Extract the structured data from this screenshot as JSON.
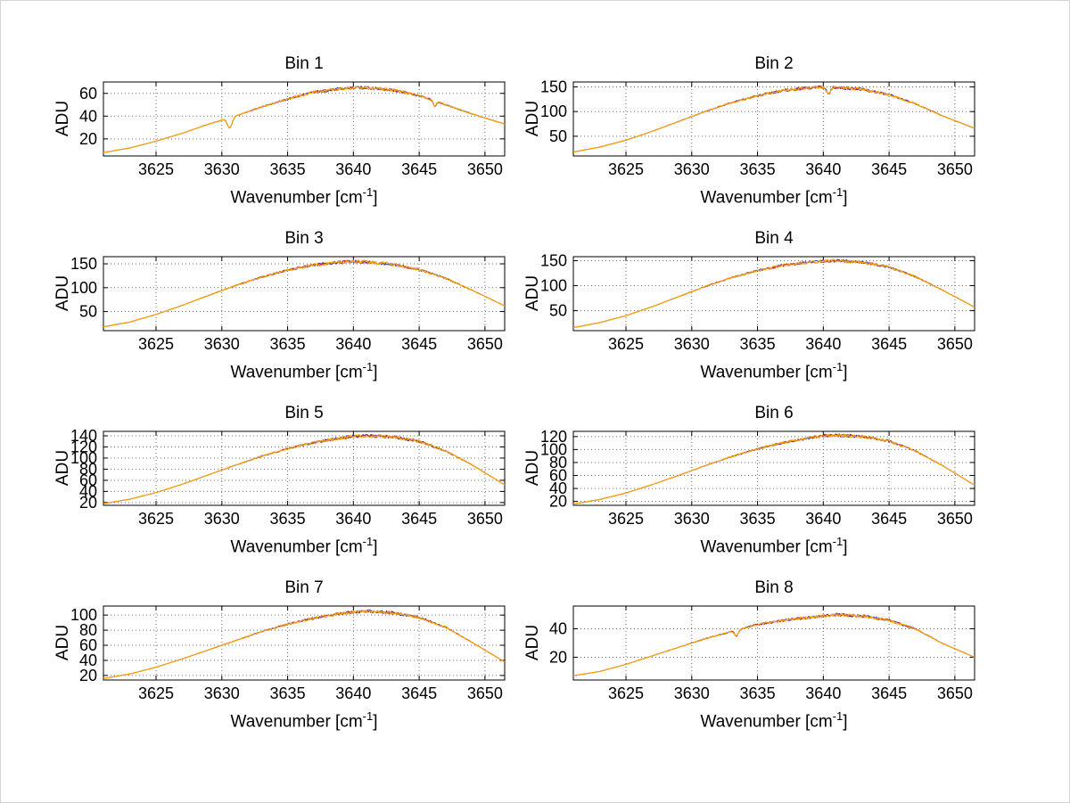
{
  "figure": {
    "background": "#ffffff",
    "axis_color": "#000000",
    "grid_color": "#6e6e6e",
    "text_color": "#000000",
    "series_colors": [
      "#2040c0",
      "#c03030",
      "#ffa500"
    ]
  },
  "labels": {
    "x_pre": "Wavenumber [cm",
    "x_sup": "-1",
    "x_post": "]"
  },
  "chart_data": [
    {
      "type": "line",
      "title": "Bin 1",
      "ylabel": "ADU",
      "xlim": [
        3621,
        3651.5
      ],
      "ylim": [
        5,
        70
      ],
      "xticks": [
        3625,
        3630,
        3635,
        3640,
        3645,
        3650
      ],
      "yticks": [
        20,
        40,
        60
      ],
      "curve_x": [
        3621,
        3623,
        3625,
        3627,
        3629,
        3631,
        3633,
        3635,
        3637,
        3639,
        3640,
        3641,
        3643,
        3645,
        3647,
        3649,
        3651.5
      ],
      "curve_y": [
        8,
        12,
        18,
        25,
        33,
        40,
        48,
        55,
        61,
        64,
        65,
        65,
        63,
        58,
        50,
        42,
        33
      ],
      "dips": [
        {
          "x": 3630.6,
          "depth": 9,
          "width": 0.25
        },
        {
          "x": 3646.2,
          "depth": 5,
          "width": 0.15
        }
      ]
    },
    {
      "type": "line",
      "title": "Bin 2",
      "ylabel": "ADU",
      "xlim": [
        3621,
        3651.5
      ],
      "ylim": [
        10,
        160
      ],
      "xticks": [
        3625,
        3630,
        3635,
        3640,
        3645,
        3650
      ],
      "yticks": [
        50,
        100,
        150
      ],
      "curve_x": [
        3621,
        3623,
        3625,
        3627,
        3629,
        3631,
        3633,
        3635,
        3637,
        3639,
        3640,
        3641,
        3643,
        3645,
        3647,
        3649,
        3651.5
      ],
      "curve_y": [
        18,
        28,
        42,
        60,
        80,
        100,
        118,
        132,
        143,
        148,
        150,
        149,
        145,
        134,
        116,
        92,
        66
      ],
      "dips": [
        {
          "x": 3640.4,
          "depth": 14,
          "width": 0.2
        }
      ]
    },
    {
      "type": "line",
      "title": "Bin 3",
      "ylabel": "ADU",
      "xlim": [
        3621,
        3651.5
      ],
      "ylim": [
        10,
        165
      ],
      "xticks": [
        3625,
        3630,
        3635,
        3640,
        3645,
        3650
      ],
      "yticks": [
        50,
        100,
        150
      ],
      "curve_x": [
        3621,
        3623,
        3625,
        3627,
        3629,
        3631,
        3633,
        3635,
        3637,
        3639,
        3640,
        3641,
        3643,
        3645,
        3647,
        3649,
        3651.5
      ],
      "curve_y": [
        18,
        28,
        44,
        63,
        84,
        104,
        122,
        137,
        148,
        153,
        155,
        154,
        149,
        138,
        120,
        95,
        62
      ],
      "dips": []
    },
    {
      "type": "line",
      "title": "Bin 4",
      "ylabel": "ADU",
      "xlim": [
        3621,
        3651.5
      ],
      "ylim": [
        10,
        158
      ],
      "xticks": [
        3625,
        3630,
        3635,
        3640,
        3645,
        3650
      ],
      "yticks": [
        50,
        100,
        150
      ],
      "curve_x": [
        3621,
        3623,
        3625,
        3627,
        3629,
        3631,
        3633,
        3635,
        3637,
        3639,
        3640,
        3641,
        3643,
        3645,
        3647,
        3649,
        3651.5
      ],
      "curve_y": [
        16,
        26,
        40,
        58,
        78,
        98,
        116,
        130,
        141,
        147,
        149,
        150,
        147,
        137,
        118,
        92,
        57
      ],
      "dips": []
    },
    {
      "type": "line",
      "title": "Bin 5",
      "ylabel": "ADU",
      "xlim": [
        3621,
        3651.5
      ],
      "ylim": [
        15,
        148
      ],
      "xticks": [
        3625,
        3630,
        3635,
        3640,
        3645,
        3650
      ],
      "yticks": [
        20,
        40,
        60,
        80,
        100,
        120,
        140
      ],
      "curve_x": [
        3621,
        3623,
        3625,
        3627,
        3629,
        3631,
        3633,
        3635,
        3637,
        3639,
        3640,
        3641,
        3643,
        3645,
        3647,
        3649,
        3651.5
      ],
      "curve_y": [
        18,
        26,
        38,
        53,
        70,
        87,
        103,
        117,
        128,
        136,
        139,
        140,
        138,
        130,
        113,
        88,
        52
      ],
      "dips": []
    },
    {
      "type": "line",
      "title": "Bin 6",
      "ylabel": "ADU",
      "xlim": [
        3621,
        3651.5
      ],
      "ylim": [
        14,
        128
      ],
      "xticks": [
        3625,
        3630,
        3635,
        3640,
        3645,
        3650
      ],
      "yticks": [
        20,
        40,
        60,
        80,
        100,
        120
      ],
      "curve_x": [
        3621,
        3623,
        3625,
        3627,
        3629,
        3631,
        3633,
        3635,
        3637,
        3639,
        3640,
        3641,
        3643,
        3645,
        3647,
        3649,
        3651.5
      ],
      "curve_y": [
        16,
        23,
        33,
        46,
        60,
        75,
        89,
        101,
        111,
        118,
        121,
        122,
        120,
        113,
        98,
        76,
        45
      ],
      "dips": []
    },
    {
      "type": "line",
      "title": "Bin 7",
      "ylabel": "ADU",
      "xlim": [
        3621,
        3651.5
      ],
      "ylim": [
        14,
        112
      ],
      "xticks": [
        3625,
        3630,
        3635,
        3640,
        3645,
        3650
      ],
      "yticks": [
        20,
        40,
        60,
        80,
        100
      ],
      "curve_x": [
        3621,
        3623,
        3625,
        3627,
        3629,
        3631,
        3633,
        3635,
        3637,
        3639,
        3640,
        3641,
        3643,
        3645,
        3647,
        3649,
        3651.5
      ],
      "curve_y": [
        16,
        22,
        31,
        42,
        54,
        66,
        78,
        88,
        96,
        102,
        104,
        105,
        103,
        97,
        84,
        64,
        38
      ],
      "dips": []
    },
    {
      "type": "line",
      "title": "Bin 8",
      "ylabel": "ADU",
      "xlim": [
        3621,
        3651.5
      ],
      "ylim": [
        4,
        56
      ],
      "xticks": [
        3625,
        3630,
        3635,
        3640,
        3645,
        3650
      ],
      "yticks": [
        20,
        40
      ],
      "curve_x": [
        3621,
        3623,
        3625,
        3627,
        3629,
        3631,
        3633,
        3635,
        3637,
        3639,
        3640,
        3641,
        3643,
        3645,
        3647,
        3649,
        3651.5
      ],
      "curve_y": [
        7,
        10,
        15,
        21,
        27,
        33,
        38,
        43,
        46,
        48,
        49,
        50,
        49,
        46,
        40,
        30,
        20
      ],
      "dips": [
        {
          "x": 3633.4,
          "depth": 4,
          "width": 0.2
        }
      ]
    }
  ]
}
